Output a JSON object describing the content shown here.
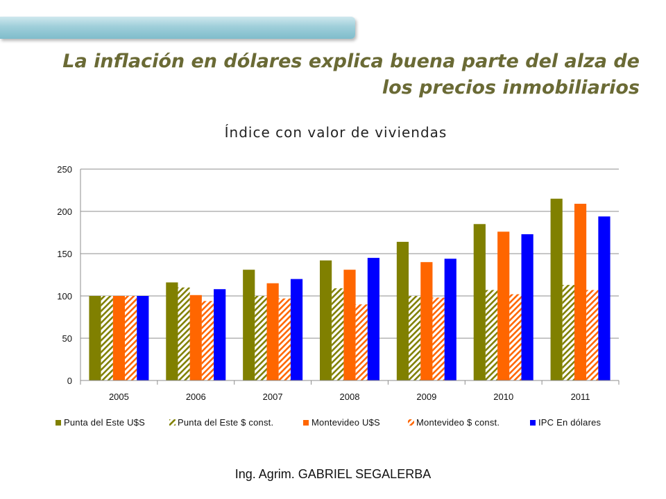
{
  "slide": {
    "title_line1": "La inflación en dólares explica buena parte del alza de",
    "title_line2": "los precios inmobiliarios",
    "title_color": "#6a6a35",
    "accent_color": "#9fcfda",
    "footer": "Ing. Agrim. GABRIEL SEGALERBA"
  },
  "chart_data": {
    "type": "bar",
    "title": "Índice con valor de viviendas",
    "xlabel": "",
    "ylabel": "",
    "categories": [
      "2005",
      "2006",
      "2007",
      "2008",
      "2009",
      "2010",
      "2011"
    ],
    "ylim": [
      0,
      250
    ],
    "yticks": [
      0,
      50,
      100,
      150,
      200,
      250
    ],
    "grid": true,
    "legend_position": "bottom",
    "series": [
      {
        "name": "Punta del Este U$S",
        "color": "#808000",
        "pattern": "solid",
        "values": [
          100,
          116,
          131,
          142,
          164,
          185,
          215
        ]
      },
      {
        "name": "Punta del Este $ const.",
        "color": "#808000",
        "pattern": "hatched",
        "values": [
          100,
          110,
          100,
          109,
          100,
          107,
          113
        ]
      },
      {
        "name": "Montevideo U$S",
        "color": "#ff6600",
        "pattern": "solid",
        "values": [
          100,
          101,
          115,
          131,
          140,
          176,
          209
        ]
      },
      {
        "name": "Montevideo $ const.",
        "color": "#ff6600",
        "pattern": "hatched",
        "values": [
          100,
          94,
          97,
          90,
          98,
          102,
          107
        ]
      },
      {
        "name": "IPC En dólares",
        "color": "#0000ff",
        "pattern": "solid",
        "values": [
          100,
          108,
          120,
          145,
          144,
          173,
          194
        ]
      }
    ]
  }
}
